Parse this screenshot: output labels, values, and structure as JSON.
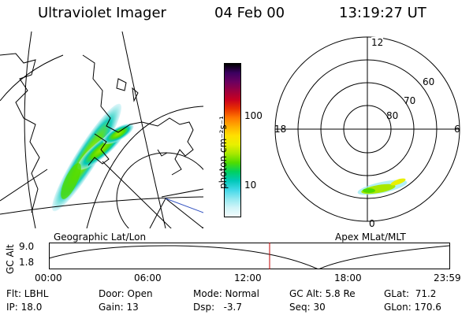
{
  "header": {
    "title": "Ultraviolet Imager",
    "date": "04 Feb 00",
    "time": "13:19:27 UT"
  },
  "colorbar": {
    "unit_label": "photon cm⁻²s⁻¹",
    "ticks": [
      "100",
      "10"
    ],
    "colors": [
      "#000000",
      "#3b0060",
      "#6a0060",
      "#9a0040",
      "#c80020",
      "#e83000",
      "#ff7800",
      "#ffb000",
      "#ffe000",
      "#e8f000",
      "#a8e800",
      "#50dc00",
      "#00d060",
      "#00c8b8",
      "#40d8e8",
      "#90e8f0",
      "#d0f4f8",
      "#f2fcfd"
    ]
  },
  "left_panel": {
    "caption": "Geographic Lat/Lon"
  },
  "right_panel": {
    "caption": "Apex MLat/MLT",
    "mlt_labels": {
      "top": "12",
      "left": "18",
      "right": "6",
      "bottom": "0"
    },
    "lat_labels": [
      "60",
      "70",
      "80"
    ]
  },
  "altitude_plot": {
    "ylabel": "GC Alt",
    "yticks": [
      "9.0",
      "1.8"
    ],
    "xticks": [
      "00:00",
      "06:00",
      "12:00",
      "18:00",
      "23:59"
    ],
    "current_time_marker_color": "#c00000"
  },
  "info": {
    "filter": "Flt: LBHL",
    "ip": "IP: 18.0",
    "door": "Door: Open",
    "gain": "Gain: 13",
    "mode": "Mode: Normal",
    "dsp": "Dsp:   -3.7",
    "gc_alt": "GC Alt: 5.8 Re",
    "seq": "Seq: 30",
    "glat": "GLat:  71.2",
    "glon": "GLon: 170.6"
  }
}
